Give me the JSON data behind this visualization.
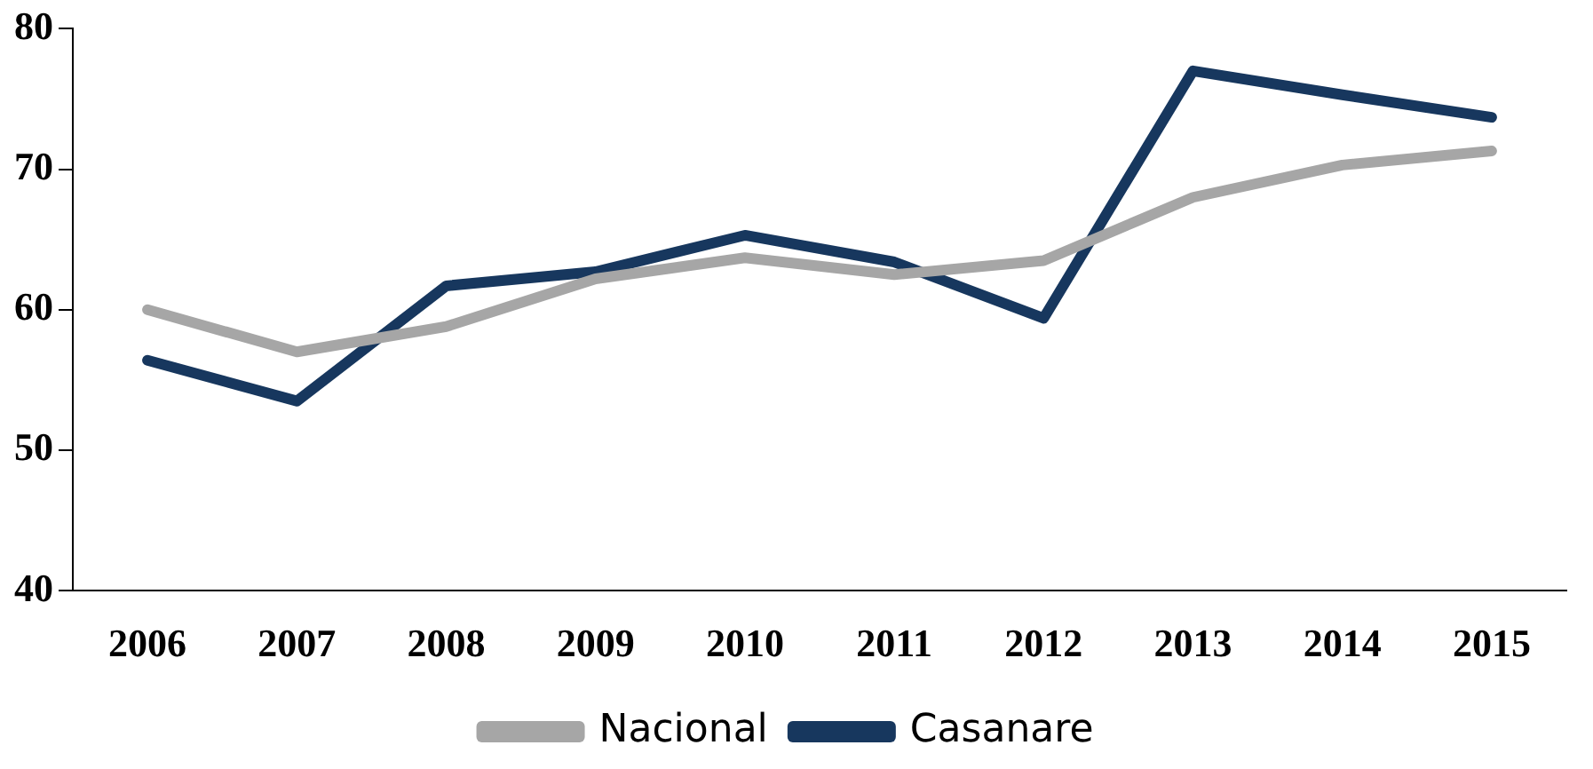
{
  "chart_data": {
    "type": "line",
    "categories": [
      "2006",
      "2007",
      "2008",
      "2009",
      "2010",
      "2011",
      "2012",
      "2013",
      "2014",
      "2015"
    ],
    "series": [
      {
        "name": "Nacional",
        "color": "#a6a6a6",
        "values": [
          60.0,
          57.0,
          58.8,
          62.2,
          63.7,
          62.5,
          63.5,
          68.0,
          70.3,
          71.3
        ]
      },
      {
        "name": "Casanare",
        "color": "#17375e",
        "values": [
          56.4,
          53.5,
          61.7,
          62.7,
          65.3,
          63.4,
          59.4,
          77.0,
          75.3,
          73.7
        ]
      }
    ],
    "ylim": [
      40,
      80
    ],
    "yticks": [
      40,
      50,
      60,
      70,
      80
    ],
    "grid": false,
    "legend": "bottom",
    "marker": "none",
    "line_style": "solid"
  }
}
